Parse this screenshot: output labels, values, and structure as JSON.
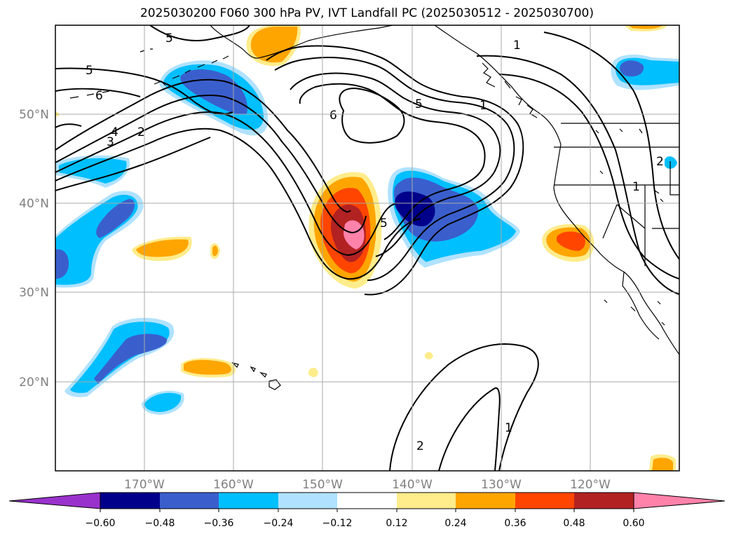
{
  "title": "2025030200 F060 300 hPa PV, IVT Landfall PC (2025030512 - 2025030700)",
  "map": {
    "projection": "PlateCarree",
    "lon_range": [
      -180,
      -110
    ],
    "lat_range": [
      10,
      60
    ],
    "lon_ticks": [
      {
        "value": -170,
        "label": "170°W"
      },
      {
        "value": -160,
        "label": "160°W"
      },
      {
        "value": -150,
        "label": "150°W"
      },
      {
        "value": -140,
        "label": "140°W"
      },
      {
        "value": -130,
        "label": "130°W"
      },
      {
        "value": -120,
        "label": "120°W"
      }
    ],
    "lat_ticks": [
      {
        "value": 20,
        "label": "20°N"
      },
      {
        "value": 30,
        "label": "30°N"
      },
      {
        "value": 40,
        "label": "40°N"
      },
      {
        "value": 50,
        "label": "50°N"
      }
    ],
    "grid": true,
    "contour_labels": [
      "5",
      "5",
      "6",
      "4",
      "3",
      "2",
      "6",
      "5",
      "1",
      "1",
      "1",
      "5",
      "2",
      "2",
      "1"
    ]
  },
  "colorbar": {
    "orientation": "horizontal",
    "extend": "both",
    "ticks": [
      "−0.60",
      "−0.48",
      "−0.36",
      "−0.24",
      "−0.12",
      "0.12",
      "0.24",
      "0.36",
      "0.48",
      "0.60"
    ],
    "colors": [
      "#9932cc",
      "#00008b",
      "#3a5fcd",
      "#00bfff",
      "#b0e2ff",
      "#ffffff",
      "#ffec8b",
      "#ffa500",
      "#ff4500",
      "#b22222",
      "#ff82ab"
    ]
  }
}
